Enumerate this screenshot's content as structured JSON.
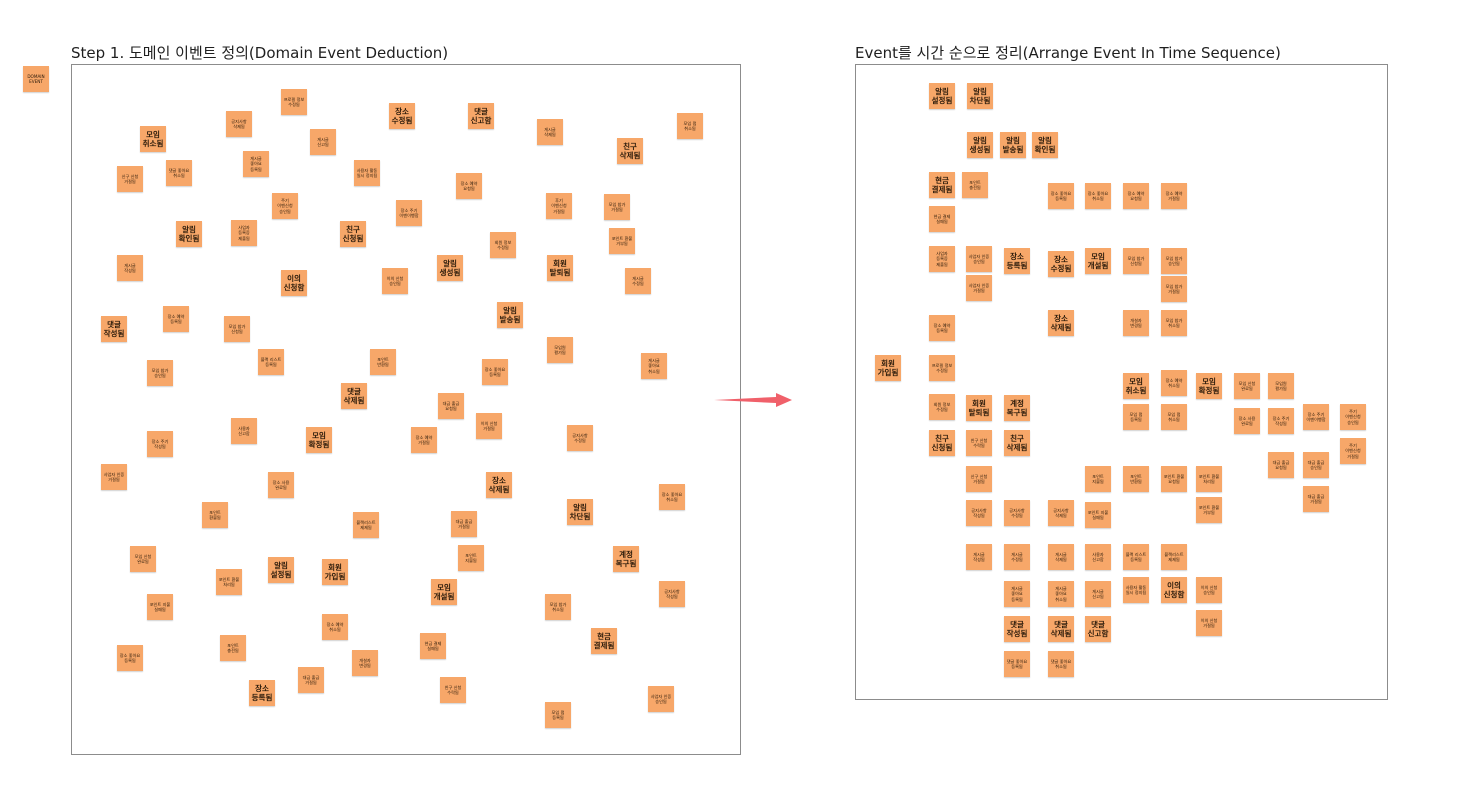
{
  "legend": {
    "label": "DOMAIN\nEVENT"
  },
  "frames": [
    {
      "id": "left",
      "title": "Step 1. 도메인 이벤트 정의(Domain Event Deduction)"
    },
    {
      "id": "right",
      "title": "Event를 시간 순으로 정리(Arrange Event In Time Sequence)"
    }
  ],
  "colors": {
    "sticky": "#f7a769",
    "arrow": "#f0606a",
    "frame_border": "#8c8c8c"
  },
  "left_stickies": [
    "모임 취소됨",
    "신구 신청 거절됨",
    "댓글 좋아요 취소됨",
    "공지사항 삭제됨",
    "게시글 좋아요 등록됨",
    "프로필 정보 수정됨",
    "게시글 신고됨",
    "사용자 활동 일시 정지됨",
    "장소 수정됨",
    "댓글 신고함",
    "게시글 삭제됨",
    "모임 펌 취소됨",
    "친구 삭제됨",
    "주기 이벤신청 승인됨",
    "장소 주기 이벤이행함",
    "장소 예약 요청됨",
    "후기 이벤신청 거절됨",
    "모임 참가 거절됨",
    "포인트 환불 거부됨",
    "알림 확인됨",
    "사업자 등록증 제출됨",
    "친구 신청됨",
    "회원 정보 수정됨",
    "게시글 작성됨",
    "이의 신청함",
    "이의 신청 승인됨",
    "알림 생성됨",
    "회원 탈퇴됨",
    "게시글 수정됨",
    "장소 예약 등록됨",
    "모임 참가 신청됨",
    "댓글 작성됨",
    "알림 발송됨",
    "블랙 리스트 등록됨",
    "포인트 반환됨",
    "모임원 평가됨",
    "모임 참가 승인됨",
    "게시글 좋아요 취소됨",
    "장소 좋아요 등록됨",
    "댓글 삭제됨",
    "대금 출금 요청됨",
    "장소 주기 작성됨",
    "사용자 신고함",
    "모임 확정됨",
    "장소 예약 거절됨",
    "이의 신청 거절됨",
    "공지사항 수정됨",
    "사업자 인증 거절됨",
    "장소 사용 완료됨",
    "장소 삭제됨",
    "장소 좋아요 취소됨",
    "포인트 환불됨",
    "블랙리스트 제제됨",
    "대금 출금 거절됨",
    "알림 차단됨",
    "모임 신청 완료됨",
    "포인트 지불됨",
    "계정 복구됨",
    "포인트 환불 처리됨",
    "알림 설정됨",
    "회원 가입됨",
    "모임 개설됨",
    "포인트 지불 실패됨",
    "장소 예약 취소됨",
    "모임 참가 취소됨",
    "공지사항 작성됨",
    "현금 결제 실패됨",
    "현금 결제됨",
    "장소 좋아요 등록됨",
    "포인트 충전됨",
    "개설자 변경됨",
    "대금 출금 거절됨",
    "장소 등록됨",
    "친구 신청 수락됨",
    "모임 펌 등록됨",
    "사업자 인증 승인됨"
  ],
  "right_stickies": [
    "알림 설정됨",
    "알림 차단됨",
    "알림 생성됨",
    "알림 발송됨",
    "알림 확인됨",
    "현금 결제됨",
    "포인트 충전됨",
    "현금 결제 실패됨",
    "장소 좋아요 등록됨",
    "장소 좋아요 취소됨",
    "장소 예약 요청됨",
    "장소 예약 거절됨",
    "사업자 등록증 제출됨",
    "사업자 인증 승인됨",
    "사업자 인증 거절됨",
    "장소 등록됨",
    "장소 수정됨",
    "모임 개설됨",
    "모임 참가 신청됨",
    "모임 참가 승인됨",
    "모임 참가 거절됨",
    "장소 삭제됨",
    "개설자 변경됨",
    "모임 참가 취소됨",
    "장소 예약 등록됨",
    "회원 가입됨",
    "프로필 정보 수정됨",
    "모임 취소됨",
    "장소 예약 취소됨",
    "모임 확정됨",
    "모임 신청 완료됨",
    "모임원 평가됨",
    "회원 정보 수정됨",
    "회원 탈퇴됨",
    "계정 복구됨",
    "모임 펌 등록됨",
    "모임 펌 취소됨",
    "장소 사용 완료됨",
    "장소 주기 작성됨",
    "장소 주기 이벤이행함",
    "주기 이벤신청 승인됨",
    "친구 신청됨",
    "친구 신청 수락됨",
    "친구 삭제됨",
    "대금 출금 요청됨",
    "대금 출금 승인됨",
    "주기 이벤신청 거절됨",
    "신구 신청 거절됨",
    "포인트 지불됨",
    "포인트 반환됨",
    "포인트 환불 요청됨",
    "포인트 환불 처리됨",
    "대금 출금 거절됨",
    "공지사항 작성됨",
    "공지사항 수정됨",
    "공지사항 삭제됨",
    "포인트 지불 실패됨",
    "포인트 환불 거부됨",
    "게시글 작성됨",
    "게시글 수정됨",
    "게시글 삭제됨",
    "사용자 신고함",
    "블랙 리스트 등록됨",
    "블랙리스트 제제됨",
    "게시글 좋아요 등록됨",
    "게시글 좋아요 취소됨",
    "게시글 신고됨",
    "사용자 활동 일시 정지됨",
    "이의 신청함",
    "이의 신청 승인됨",
    "이의 신청 거절됨",
    "댓글 작성됨",
    "댓글 삭제됨",
    "댓글 신고함",
    "댓글 좋아요 등록됨",
    "댓글 좋아요 취소됨"
  ]
}
